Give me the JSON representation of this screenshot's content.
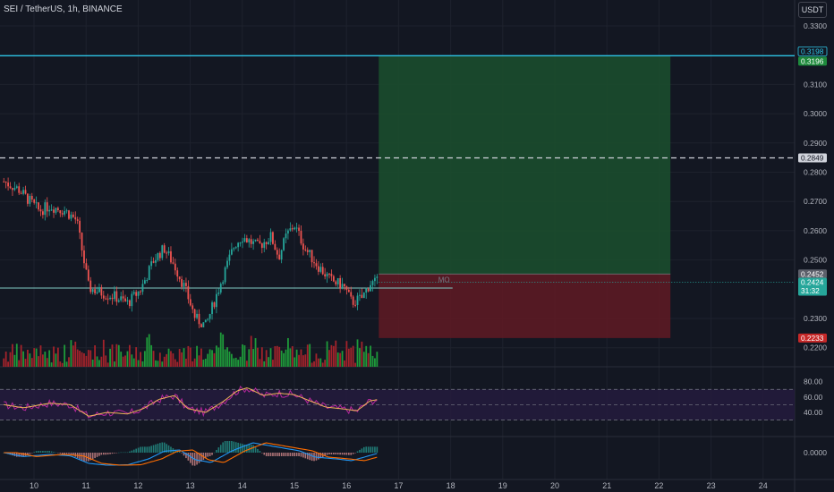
{
  "header": {
    "symbol": "SEI / TetherUS, 1h, BINANCE",
    "currency_button": "USDT"
  },
  "colors": {
    "background": "#131722",
    "up": "#26a69a",
    "down": "#ef5350",
    "vol_up": "#1e9b3a",
    "vol_down": "#a3232b",
    "target_zone": "#1b4d2e",
    "stop_zone": "#5c1a24",
    "cyan_line": "#2ec5e6",
    "horizontal_green": "#80cbc4",
    "rsi": "#b6279d",
    "rsi_ma": "#f0b45a",
    "macd": "#2196f3",
    "signal": "#ff6d00",
    "rsi_band": "#241b3d"
  },
  "chart_data": {
    "type": "candlestick",
    "price_axis": {
      "ylim": [
        0.217,
        0.3335
      ],
      "ticks": [
        "0.3300",
        "0.3100",
        "0.3000",
        "0.2900",
        "0.2800",
        "0.2700",
        "0.2600",
        "0.2500",
        "0.2300",
        "0.2200"
      ]
    },
    "time_axis": {
      "ticks": [
        "10",
        "11",
        "12",
        "13",
        "14",
        "15",
        "16",
        "17",
        "18",
        "19",
        "20",
        "21",
        "22",
        "23",
        "24"
      ],
      "data_end_day": 16.62
    },
    "price_labels": [
      {
        "value": "0.3198",
        "kind": "cyan-outline"
      },
      {
        "value": "0.3196",
        "kind": "target"
      },
      {
        "value": "0.2849",
        "kind": "dashed-level"
      },
      {
        "value": "0.2452",
        "kind": "entry"
      },
      {
        "value": "0.2424",
        "kind": "current",
        "countdown": "31:32"
      },
      {
        "value": "0.2233",
        "kind": "stop"
      }
    ],
    "levels": {
      "cyan_line": 0.3198,
      "dashed_line": 0.2849,
      "green_line": 0.2404,
      "current_price": 0.2424
    },
    "position": {
      "start_day": 16.62,
      "end_day": 22.22,
      "target": 0.3196,
      "entry": 0.2452,
      "stop": 0.2233
    },
    "annotation": {
      "text": "MO",
      "day": 17.9,
      "price": 0.2414
    },
    "keypoints": [
      [
        9.42,
        0.2768
      ],
      [
        9.7,
        0.2742
      ],
      [
        9.88,
        0.2708
      ],
      [
        10.1,
        0.2668
      ],
      [
        10.3,
        0.2685
      ],
      [
        10.6,
        0.2668
      ],
      [
        10.82,
        0.2635
      ],
      [
        11.05,
        0.2405
      ],
      [
        11.3,
        0.2388
      ],
      [
        11.55,
        0.2375
      ],
      [
        11.8,
        0.2352
      ],
      [
        12.05,
        0.24
      ],
      [
        12.3,
        0.25
      ],
      [
        12.5,
        0.254
      ],
      [
        12.7,
        0.248
      ],
      [
        12.9,
        0.2402
      ],
      [
        13.1,
        0.23
      ],
      [
        13.3,
        0.2275
      ],
      [
        13.6,
        0.243
      ],
      [
        13.85,
        0.2552
      ],
      [
        14.0,
        0.258
      ],
      [
        14.3,
        0.2545
      ],
      [
        14.55,
        0.258
      ],
      [
        14.7,
        0.251
      ],
      [
        14.85,
        0.2585
      ],
      [
        15.0,
        0.262
      ],
      [
        15.2,
        0.254
      ],
      [
        15.45,
        0.248
      ],
      [
        15.7,
        0.243
      ],
      [
        15.95,
        0.241
      ],
      [
        16.1,
        0.2355
      ],
      [
        16.3,
        0.237
      ],
      [
        16.45,
        0.242
      ],
      [
        16.62,
        0.2424
      ]
    ],
    "rsi": {
      "ticks": [
        "80.00",
        "60.00",
        "40.00"
      ],
      "ylim": [
        11,
        90
      ],
      "band_upper": 70,
      "band_mid": 50,
      "band_lower": 30,
      "keypoints": [
        [
          9.42,
          50
        ],
        [
          9.8,
          46
        ],
        [
          10.3,
          52
        ],
        [
          10.7,
          50
        ],
        [
          11.05,
          35
        ],
        [
          11.4,
          40
        ],
        [
          11.8,
          38
        ],
        [
          12.1,
          45
        ],
        [
          12.4,
          57
        ],
        [
          12.7,
          62
        ],
        [
          12.95,
          45
        ],
        [
          13.3,
          40
        ],
        [
          13.65,
          55
        ],
        [
          13.9,
          68
        ],
        [
          14.1,
          72
        ],
        [
          14.4,
          62
        ],
        [
          14.7,
          65
        ],
        [
          15.0,
          63
        ],
        [
          15.3,
          55
        ],
        [
          15.6,
          47
        ],
        [
          16.0,
          44
        ],
        [
          16.2,
          42
        ],
        [
          16.45,
          55
        ],
        [
          16.62,
          57
        ]
      ]
    },
    "macd": {
      "ticks": [
        "0.0000"
      ],
      "ylim": [
        -0.009,
        0.009
      ],
      "keypoints": [
        [
          9.42,
          0.0
        ],
        [
          9.8,
          -0.0022
        ],
        [
          10.3,
          -0.001
        ],
        [
          10.7,
          -0.0018
        ],
        [
          11.05,
          -0.006
        ],
        [
          11.4,
          -0.007
        ],
        [
          11.8,
          -0.0068
        ],
        [
          12.2,
          -0.0035
        ],
        [
          12.5,
          0.0008
        ],
        [
          12.8,
          0.0015
        ],
        [
          13.1,
          -0.004
        ],
        [
          13.4,
          -0.0055
        ],
        [
          13.8,
          0.001
        ],
        [
          14.2,
          0.0055
        ],
        [
          14.5,
          0.004
        ],
        [
          14.8,
          0.0025
        ],
        [
          15.1,
          0.001
        ],
        [
          15.4,
          -0.0025
        ],
        [
          15.8,
          -0.0035
        ],
        [
          16.1,
          -0.0045
        ],
        [
          16.4,
          -0.002
        ],
        [
          16.62,
          -0.0002
        ]
      ]
    }
  }
}
